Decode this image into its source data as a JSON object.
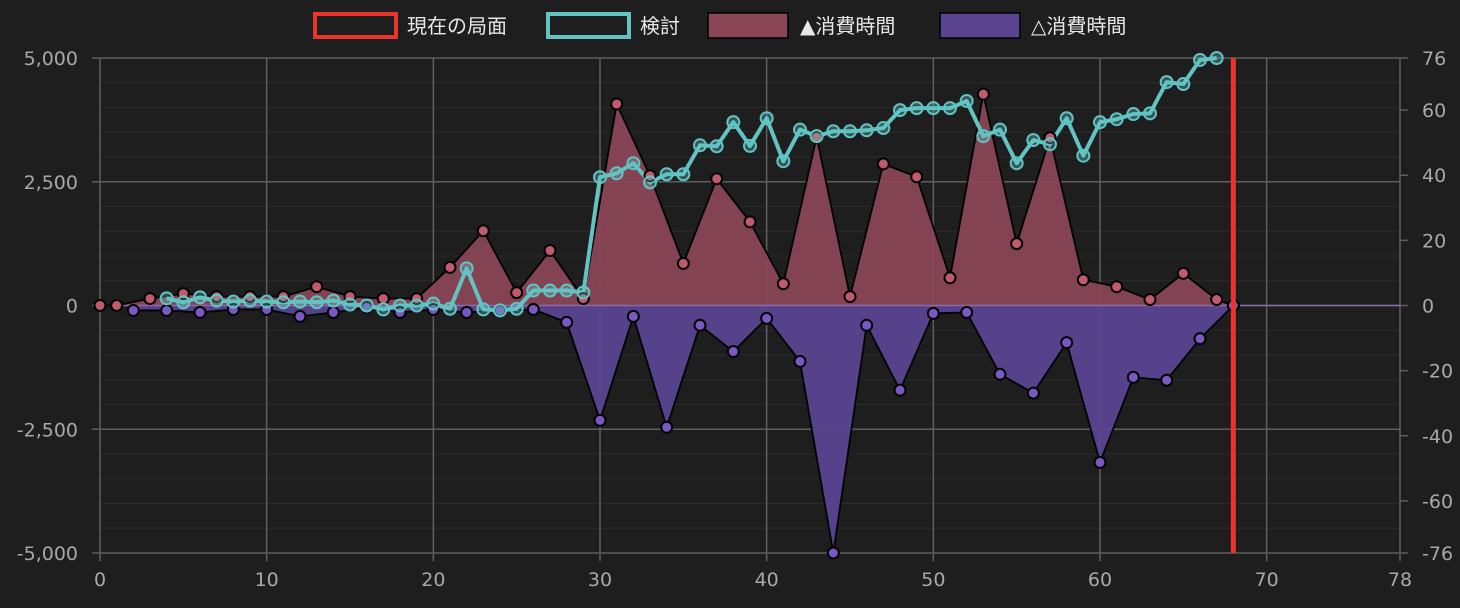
{
  "chart_data": {
    "type": "line",
    "title": "",
    "legend_position": "top",
    "grid": true,
    "x": {
      "min": 0,
      "max": 78,
      "ticks": [
        0,
        10,
        20,
        30,
        40,
        50,
        60,
        70,
        78
      ],
      "tick_labels": [
        "0",
        "10",
        "20",
        "30",
        "40",
        "50",
        "60",
        "70",
        "78"
      ]
    },
    "y_left": {
      "min": -5000,
      "max": 5000,
      "ticks": [
        5000,
        2500,
        0,
        -2500,
        -5000
      ],
      "tick_labels": [
        "5,000",
        "2,500",
        "0",
        "-2,500",
        "-5,000"
      ]
    },
    "y_right": {
      "min": -76,
      "max": 76,
      "ticks": [
        76,
        60,
        40,
        20,
        0,
        -20,
        -40,
        -60,
        -76
      ],
      "tick_labels": [
        "76",
        "60",
        "40",
        "20",
        "0",
        "-20",
        "-40",
        "-60",
        "-76"
      ]
    },
    "current_position": {
      "name": "現在の局面",
      "x": 68,
      "color": "#e8342a"
    },
    "series": [
      {
        "name": "検討",
        "type": "line",
        "axis": "right",
        "color": "#62c4c2",
        "x": [
          4,
          5,
          6,
          7,
          8,
          9,
          10,
          11,
          12,
          13,
          14,
          15,
          16,
          17,
          18,
          19,
          20,
          21,
          22,
          23,
          24,
          25,
          26,
          27,
          28,
          29,
          30,
          31,
          32,
          33,
          34,
          35,
          36,
          37,
          38,
          39,
          40,
          41,
          42,
          43,
          44,
          45,
          46,
          47,
          48,
          49,
          50,
          51,
          52,
          53,
          54,
          55,
          56,
          57,
          58,
          59,
          60,
          61,
          62,
          63,
          64,
          65,
          66,
          67
        ],
        "y": [
          2.2,
          1,
          2.5,
          1.5,
          1.2,
          1.5,
          1.2,
          1,
          1.2,
          1,
          1.5,
          0.3,
          0,
          -1.2,
          0,
          0,
          0.6,
          -1,
          11.4,
          -1.2,
          -1.5,
          -1,
          4.6,
          4.6,
          4.6,
          4,
          39.4,
          40.6,
          43.7,
          37.8,
          40.3,
          40.3,
          49.2,
          48.9,
          56.3,
          49,
          57.5,
          44.3,
          54,
          52,
          53.5,
          53.5,
          53.8,
          54.5,
          60,
          60.6,
          60.6,
          60.6,
          62.8,
          52,
          54,
          43.7,
          50.8,
          49.5,
          57.5,
          46,
          56.3,
          57.2,
          58.8,
          59,
          68.6,
          68,
          75.4,
          76
        ]
      },
      {
        "name": "▲消費時間",
        "type": "area",
        "axis": "left",
        "color": "#8a4655",
        "point_color": "#c05a6c",
        "x": [
          0,
          1,
          3,
          5,
          7,
          9,
          11,
          13,
          15,
          17,
          19,
          21,
          23,
          25,
          27,
          29,
          31,
          33,
          35,
          37,
          39,
          41,
          43,
          45,
          47,
          49,
          51,
          53,
          55,
          57,
          59,
          61,
          63,
          65,
          67,
          68
        ],
        "y": [
          0,
          0,
          140,
          240,
          180,
          180,
          180,
          380,
          180,
          140,
          140,
          770,
          1510,
          260,
          1110,
          140,
          4070,
          2620,
          850,
          2560,
          1690,
          440,
          3400,
          180,
          2860,
          2600,
          560,
          4270,
          1250,
          3390,
          520,
          380,
          120,
          650,
          120,
          0
        ]
      },
      {
        "name": "△消費時間",
        "type": "area",
        "axis": "left",
        "color": "#5a4490",
        "point_color": "#7a58c4",
        "x": [
          2,
          4,
          6,
          8,
          10,
          12,
          14,
          16,
          18,
          20,
          22,
          24,
          26,
          28,
          30,
          32,
          34,
          36,
          38,
          40,
          42,
          44,
          46,
          48,
          50,
          52,
          54,
          56,
          58,
          60,
          62,
          64,
          66,
          68
        ],
        "y": [
          -100,
          -100,
          -140,
          -80,
          -80,
          -220,
          -140,
          -40,
          -140,
          -80,
          -140,
          -100,
          -80,
          -340,
          -2320,
          -220,
          -2460,
          -400,
          -930,
          -260,
          -1130,
          -5000,
          -400,
          -1710,
          -160,
          -140,
          -1390,
          -1770,
          -750,
          -3170,
          -1450,
          -1510,
          -670,
          0
        ]
      }
    ]
  }
}
